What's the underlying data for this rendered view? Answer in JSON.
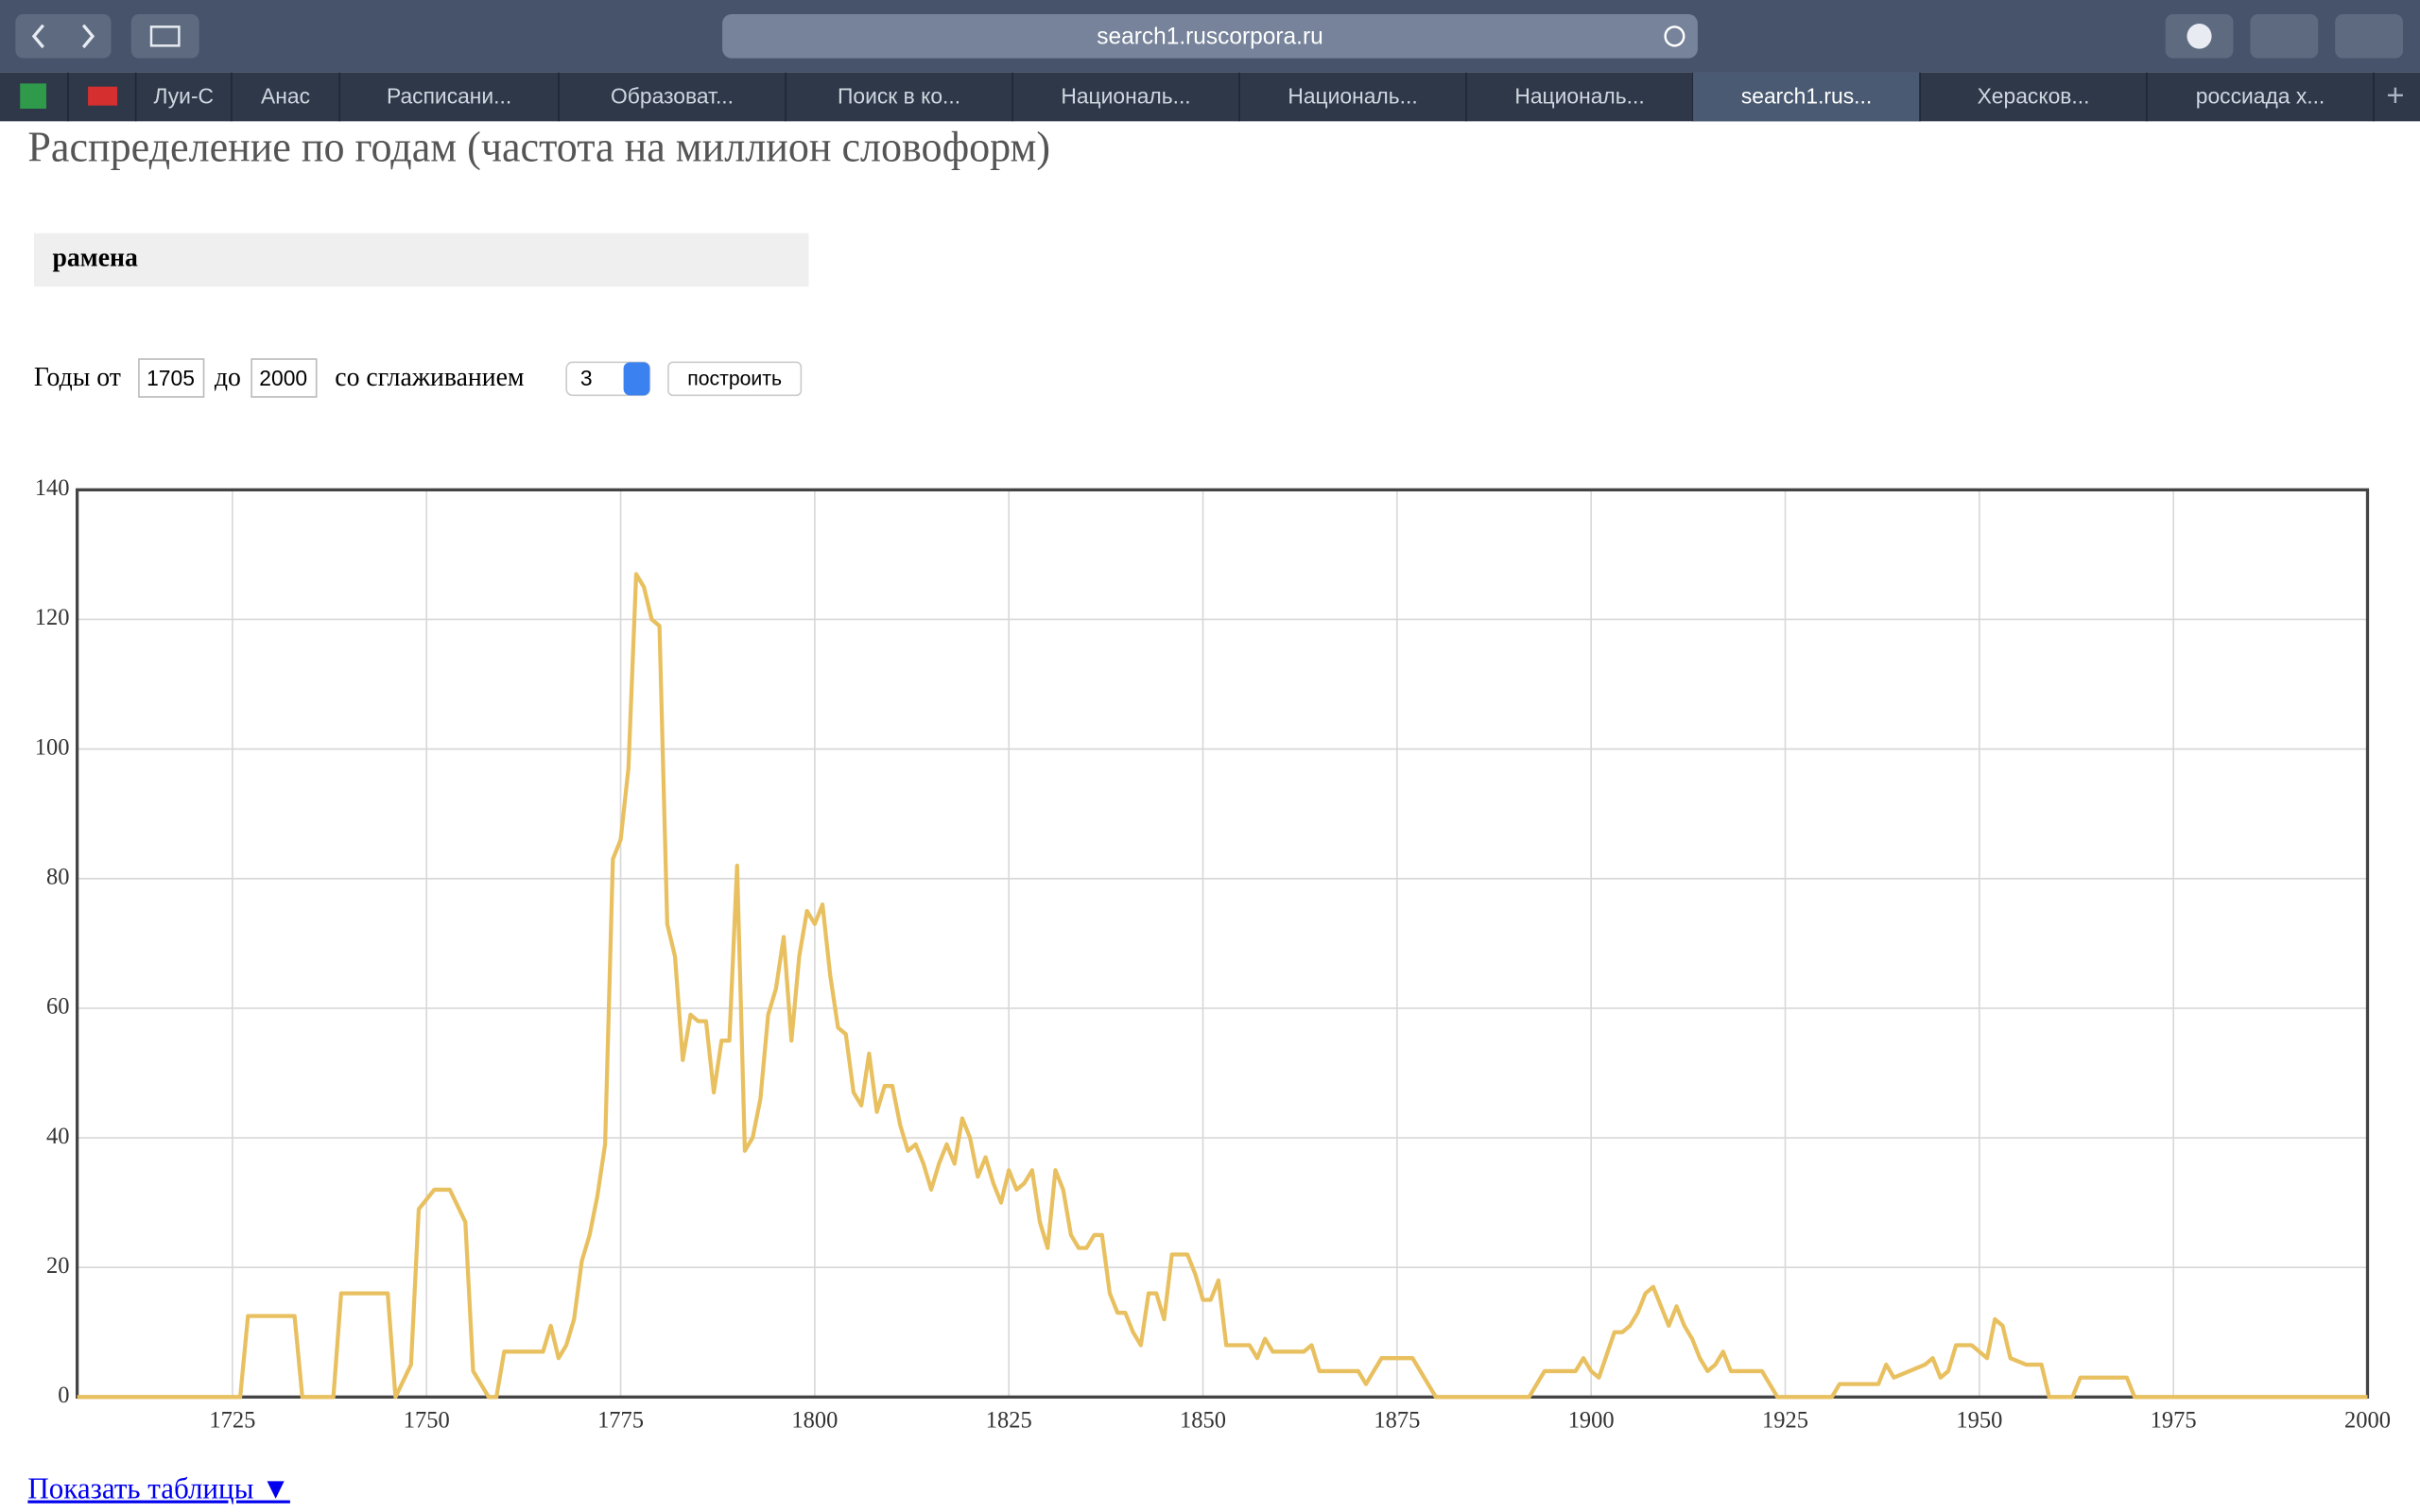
{
  "browser": {
    "url": "search1.ruscorpora.ru",
    "tabs": [
      "Луи-С",
      "Анас",
      "Расписани...",
      "Образоват...",
      "Поиск в ко...",
      "Националь...",
      "Националь...",
      "Националь...",
      "search1.rus...",
      "Херасков...",
      "россиада х..."
    ]
  },
  "page": {
    "heading": "Распределение по годам (частота на миллион словоформ)",
    "query": "рамена",
    "form": {
      "from_label": "Годы от",
      "from": "1705",
      "to_label": "до",
      "to": "2000",
      "smoothing_label": "со сглаживанием",
      "smoothing": "3",
      "button": "построить"
    },
    "link": "Показать таблицы ▼"
  },
  "chart_data": {
    "type": "line",
    "x": [
      1705,
      1726,
      1727,
      1733,
      1734,
      1738,
      1739,
      1745,
      1746,
      1748,
      1749,
      1751,
      1753,
      1755,
      1756,
      1758,
      1759,
      1760,
      1765,
      1766,
      1767,
      1768,
      1769,
      1770,
      1771,
      1772,
      1773,
      1774,
      1775,
      1776,
      1777,
      1778,
      1779,
      1780,
      1781,
      1782,
      1783,
      1784,
      1785,
      1786,
      1787,
      1788,
      1789,
      1790,
      1791,
      1792,
      1793,
      1794,
      1795,
      1796,
      1797,
      1798,
      1799,
      1800,
      1801,
      1802,
      1803,
      1804,
      1805,
      1806,
      1807,
      1808,
      1809,
      1810,
      1811,
      1812,
      1813,
      1814,
      1815,
      1816,
      1817,
      1818,
      1819,
      1820,
      1821,
      1822,
      1823,
      1824,
      1825,
      1826,
      1827,
      1828,
      1829,
      1830,
      1831,
      1832,
      1833,
      1834,
      1835,
      1836,
      1837,
      1838,
      1839,
      1840,
      1841,
      1842,
      1843,
      1844,
      1845,
      1846,
      1848,
      1849,
      1850,
      1851,
      1852,
      1853,
      1856,
      1857,
      1858,
      1859,
      1863,
      1864,
      1865,
      1870,
      1871,
      1872,
      1873,
      1877,
      1879,
      1880,
      1892,
      1894,
      1898,
      1899,
      1900,
      1901,
      1903,
      1904,
      1905,
      1906,
      1907,
      1908,
      1909,
      1910,
      1911,
      1912,
      1913,
      1914,
      1915,
      1916,
      1917,
      1918,
      1922,
      1923,
      1924,
      1931,
      1932,
      1937,
      1938,
      1939,
      1941,
      1943,
      1944,
      1945,
      1946,
      1947,
      1949,
      1950,
      1951,
      1952,
      1953,
      1954,
      1956,
      1958,
      1959,
      1962,
      1963,
      1969,
      1970,
      2000
    ],
    "series": [
      {
        "name": "рамена",
        "color": "#e8c060",
        "values": [
          0,
          0,
          12.5,
          12.5,
          0,
          0,
          16,
          16,
          0,
          5,
          29,
          32,
          32,
          27,
          4,
          0,
          0,
          7,
          7,
          11,
          6,
          8,
          12,
          21,
          25,
          31,
          39,
          83,
          86,
          97,
          127,
          125,
          120,
          119,
          73,
          68,
          52,
          59,
          58,
          58,
          47,
          55,
          55,
          82,
          38,
          40,
          46,
          59,
          63,
          71,
          55,
          68,
          75,
          73,
          76,
          65,
          57,
          56,
          47,
          45,
          53,
          44,
          48,
          48,
          42,
          38,
          39,
          36,
          32,
          36,
          39,
          36,
          43,
          40,
          34,
          37,
          33,
          30,
          35,
          32,
          33,
          35,
          27,
          23,
          35,
          32,
          25,
          23,
          23,
          25,
          25,
          16,
          13,
          13,
          10,
          8,
          16,
          16,
          12,
          22,
          22,
          19,
          15,
          15,
          18,
          8,
          8,
          6,
          9,
          7,
          7,
          8,
          4,
          4,
          2,
          4,
          6,
          6,
          2,
          0,
          0,
          4,
          4,
          6,
          4,
          3,
          10,
          10,
          11,
          13,
          16,
          17,
          14,
          11,
          14,
          11,
          9,
          6,
          4,
          5,
          7,
          4,
          4,
          2,
          0,
          0,
          2,
          2,
          5,
          3,
          4,
          5,
          6,
          3,
          4,
          8,
          8,
          7,
          6,
          12,
          11,
          6,
          5,
          5,
          0,
          0,
          3,
          3,
          0,
          0
        ]
      }
    ],
    "xlim": [
      1705,
      2000
    ],
    "xticks": [
      1725,
      1750,
      1775,
      1800,
      1825,
      1850,
      1875,
      1900,
      1925,
      1950,
      1975,
      2000
    ],
    "ylim": [
      0,
      140
    ],
    "yticks": [
      0,
      20,
      40,
      60,
      80,
      100,
      120,
      140
    ],
    "grid": true
  }
}
